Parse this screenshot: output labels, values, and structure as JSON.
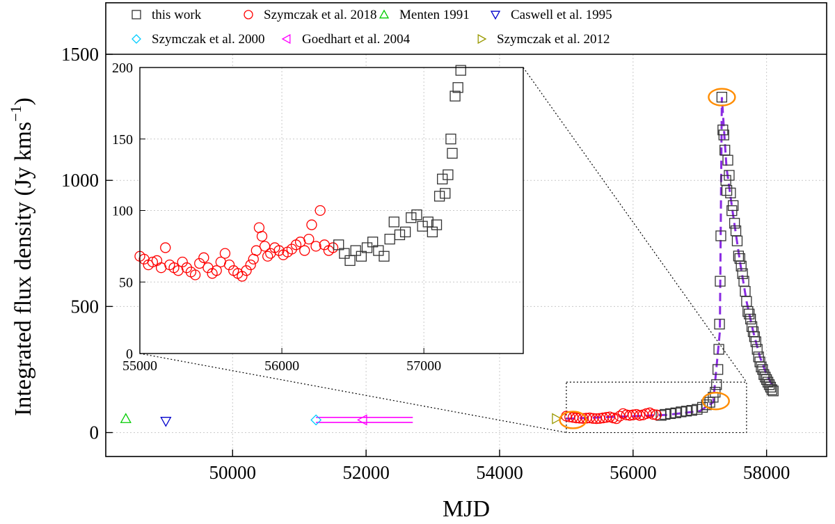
{
  "chart_data": [
    {
      "type": "scatter",
      "role": "main",
      "title": "",
      "xlabel": "MJD",
      "ylabel": "Integrated flux density (Jy kms",
      "ylabel_superscript": "−1",
      "ylabel_suffix": ")",
      "xlim": [
        48100,
        58900
      ],
      "ylim": [
        -95,
        1500
      ],
      "xticks": [
        50000,
        52000,
        54000,
        56000,
        58000
      ],
      "xtick_labels": [
        "50000",
        "52000",
        "54000",
        "56000",
        "58000"
      ],
      "yticks": [
        0,
        500,
        1000,
        1500
      ],
      "ytick_labels": [
        "0",
        "500",
        "1000",
        "1500"
      ],
      "grid": true,
      "legend_placement": "top (above plot area, two rows)",
      "legend": [
        {
          "label": "this work",
          "marker": "square",
          "color": "#333333"
        },
        {
          "label": "Szymczak et al. 2018",
          "marker": "circle",
          "color": "#ff0000"
        },
        {
          "label": "Menten 1991",
          "marker": "triangle-up",
          "color": "#00cc00"
        },
        {
          "label": "Caswell et al. 1995",
          "marker": "triangle-down",
          "color": "#0000cc"
        },
        {
          "label": "Szymczak et al. 2000",
          "marker": "diamond",
          "color": "#00ccff"
        },
        {
          "label": "Goedhart et al. 2004",
          "marker": "triangle-left",
          "color": "#ff00ff"
        },
        {
          "label": "Szymczak et al. 2012",
          "marker": "triangle-right",
          "color": "#999900"
        }
      ],
      "series": [
        {
          "name": "this work",
          "marker": "square",
          "color": "#333333",
          "x": [
            56420,
            56480,
            56560,
            56640,
            56720,
            56800,
            56880,
            56960,
            57040,
            57100,
            57150,
            57200,
            57230,
            57250,
            57270,
            57285,
            57295,
            57305,
            57315,
            57330,
            57345,
            57360,
            57375,
            57390,
            57405,
            57420,
            57440,
            57460,
            57480,
            57500,
            57520,
            57540,
            57560,
            57580,
            57600,
            57620,
            57640,
            57660,
            57680,
            57700,
            57720,
            57740,
            57760,
            57780,
            57800,
            57820,
            57840,
            57860,
            57880,
            57900,
            57920,
            57940,
            57960,
            57980,
            58000,
            58020,
            58040,
            58060,
            58080,
            58100
          ],
          "y": [
            68,
            72,
            75,
            78,
            82,
            85,
            88,
            92,
            100,
            110,
            120,
            140,
            160,
            190,
            250,
            330,
            430,
            600,
            780,
            1330,
            1200,
            1180,
            1120,
            1000,
            960,
            1080,
            1020,
            950,
            880,
            900,
            830,
            800,
            760,
            700,
            690,
            660,
            630,
            600,
            560,
            520,
            480,
            470,
            450,
            420,
            400,
            380,
            360,
            330,
            300,
            280,
            260,
            250,
            230,
            220,
            210,
            200,
            190,
            180,
            170,
            165
          ]
        },
        {
          "name": "Szymczak et al. 2018",
          "marker": "circle",
          "color": "#ff0000",
          "x": [
            55000,
            55050,
            55100,
            55150,
            55200,
            55250,
            55300,
            55350,
            55400,
            55450,
            55500,
            55550,
            55600,
            55650,
            55700,
            55750,
            55800,
            55850,
            55900,
            55950,
            56000,
            56050,
            56100,
            56150,
            56200,
            56250,
            56300,
            56350
          ],
          "y": [
            65,
            62,
            60,
            58,
            57,
            56,
            57,
            58,
            56,
            55,
            56,
            58,
            60,
            62,
            58,
            55,
            65,
            75,
            70,
            68,
            70,
            72,
            68,
            70,
            75,
            78,
            72,
            70
          ]
        },
        {
          "name": "Menten 1991",
          "marker": "triangle-up",
          "color": "#00cc00",
          "x": [
            48400
          ],
          "y": [
            55
          ]
        },
        {
          "name": "Caswell et al. 1995",
          "marker": "triangle-down",
          "color": "#0000cc",
          "x": [
            49000
          ],
          "y": [
            45
          ]
        },
        {
          "name": "Szymczak et al. 2000",
          "marker": "diamond",
          "color": "#00ccff",
          "x": [
            51250
          ],
          "y": [
            50
          ]
        },
        {
          "name": "Goedhart et al. 2004",
          "marker": "triangle-left",
          "color": "#ff00ff",
          "x": [
            51950
          ],
          "y": [
            50
          ]
        },
        {
          "name": "Szymczak et al. 2012",
          "marker": "triangle-right",
          "color": "#999900",
          "x": [
            54850
          ],
          "y": [
            55
          ]
        }
      ],
      "ranges": [
        {
          "color": "#ff00ff",
          "x": [
            51250,
            52700
          ],
          "y": 60
        },
        {
          "color": "#ff00ff",
          "x": [
            51250,
            52700
          ],
          "y": 40
        }
      ],
      "fit_line": {
        "color": "#8a2be2",
        "style": "dashed",
        "x": [
          55000,
          55500,
          56000,
          56500,
          57000,
          57200,
          57300,
          57330,
          57400,
          57500,
          57600,
          57700,
          57800,
          57900,
          58000,
          58100
        ],
        "y": [
          55,
          60,
          65,
          70,
          85,
          120,
          400,
          1330,
          1050,
          860,
          680,
          520,
          400,
          300,
          230,
          180
        ]
      },
      "highlights": [
        {
          "color": "#ff8c00",
          "x": 55100,
          "y": 50
        },
        {
          "color": "#ff8c00",
          "x": 57240,
          "y": 125
        },
        {
          "color": "#ff8c00",
          "x": 57330,
          "y": 1330
        }
      ],
      "zoom_box": {
        "x": [
          55000,
          57700
        ],
        "y": [
          0,
          200
        ]
      }
    },
    {
      "type": "scatter",
      "role": "inset",
      "title": "",
      "xlabel": "",
      "ylabel": "",
      "xlim": [
        55000,
        57700
      ],
      "ylim": [
        0,
        200
      ],
      "xticks": [
        55000,
        56000,
        57000
      ],
      "xtick_labels": [
        "55000",
        "56000",
        "57000"
      ],
      "yticks": [
        0,
        50,
        100,
        150,
        200
      ],
      "ytick_labels": [
        "0",
        "50",
        "100",
        "150",
        "200"
      ],
      "grid": true,
      "series": [
        {
          "name": "Szymczak et al. 2018",
          "marker": "circle",
          "color": "#ff0000",
          "x": [
            55000,
            55030,
            55060,
            55090,
            55120,
            55150,
            55180,
            55210,
            55240,
            55270,
            55300,
            55330,
            55360,
            55390,
            55420,
            55450,
            55480,
            55510,
            55540,
            55570,
            55600,
            55630,
            55660,
            55690,
            55720,
            55750,
            55780,
            55800,
            55820,
            55840,
            55860,
            55880,
            55900,
            55920,
            55950,
            55980,
            56010,
            56040,
            56070,
            56100,
            56130,
            56160,
            56190,
            56210,
            56240,
            56270,
            56300,
            56330,
            56360
          ],
          "y": [
            68,
            66,
            62,
            64,
            65,
            60,
            74,
            62,
            60,
            58,
            64,
            60,
            57,
            55,
            63,
            67,
            60,
            56,
            58,
            64,
            70,
            62,
            58,
            56,
            54,
            58,
            62,
            66,
            72,
            88,
            82,
            75,
            68,
            70,
            74,
            72,
            69,
            71,
            73,
            76,
            78,
            72,
            80,
            90,
            75,
            100,
            76,
            72,
            74
          ]
        },
        {
          "name": "this work",
          "marker": "square",
          "color": "#333333",
          "x": [
            56400,
            56440,
            56480,
            56520,
            56560,
            56600,
            56640,
            56680,
            56720,
            56760,
            56790,
            56830,
            56870,
            56910,
            56950,
            56990,
            57030,
            57060,
            57090,
            57110,
            57130,
            57150,
            57170,
            57190,
            57200,
            57220,
            57240,
            57260
          ],
          "y": [
            76,
            70,
            65,
            72,
            68,
            74,
            78,
            72,
            68,
            80,
            92,
            83,
            85,
            95,
            97,
            89,
            92,
            85,
            90,
            110,
            122,
            112,
            125,
            150,
            140,
            180,
            186,
            198
          ]
        }
      ]
    }
  ]
}
